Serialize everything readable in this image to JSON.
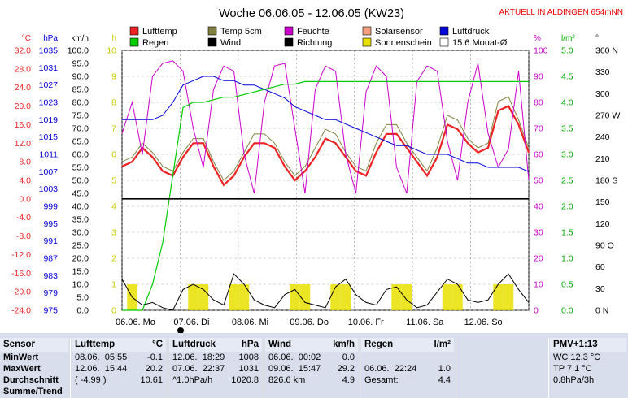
{
  "header": {
    "title": "Woche 06.06.05 - 12.06.05 (KW23)",
    "location_badge": "AKTUELL IN ALDINGEN 654mNN"
  },
  "legend": {
    "row1": [
      {
        "label": "Lufttemp",
        "color": "#ee2222"
      },
      {
        "label": "Temp 5cm",
        "color": "#808040"
      },
      {
        "label": "Feuchte",
        "color": "#cc00cc"
      },
      {
        "label": "Solarsensor",
        "color": "#f4a080"
      },
      {
        "label": "Luftdruck",
        "color": "#0000dd"
      }
    ],
    "row2": [
      {
        "label": "Regen",
        "color": "#00cc00"
      },
      {
        "label": "Wind",
        "color": "#000000"
      },
      {
        "label": "Richtung",
        "color": "#000000"
      },
      {
        "label": "Sonnenschein",
        "color": "#e8e000"
      },
      {
        "label": "15.6 Monat-Ø",
        "color": "#ffffff"
      }
    ]
  },
  "chart_data": {
    "type": "line",
    "title": "Woche 06.06.05 - 12.06.05 (KW23)",
    "x_labels": [
      "06.06. Mo",
      "07.06. Di",
      "08.06. Mi",
      "09.06. Do",
      "10.06. Fr",
      "11.06. Sa",
      "12.06. So"
    ],
    "axes": {
      "temp_c": {
        "unit": "°C",
        "color": "#ee2222",
        "ticks": [
          "32.0",
          "28.0",
          "24.0",
          "20.0",
          "16.0",
          "12.0",
          "8.0",
          "4.0",
          "0.0",
          "-4.0",
          "-8.0",
          "-12.0",
          "-16.0",
          "-20.0",
          "-24.0"
        ],
        "range": [
          -24,
          32
        ]
      },
      "pressure_hpa": {
        "unit": "hPa",
        "color": "#0000dd",
        "ticks": [
          "1035",
          "1031",
          "1027",
          "1023",
          "1019",
          "1015",
          "1011",
          "1007",
          "1003",
          "999",
          "995",
          "991",
          "987",
          "983",
          "979",
          "975"
        ],
        "range": [
          975,
          1035
        ]
      },
      "wind_kmh": {
        "unit": "km/h",
        "color": "#000000",
        "ticks": [
          "100.0",
          "95.0",
          "90.0",
          "85.0",
          "80.0",
          "75.0",
          "70.0",
          "65.0",
          "60.0",
          "55.0",
          "50.0",
          "45.0",
          "40.0",
          "35.0",
          "30.0",
          "25.0",
          "20.0",
          "15.0",
          "10.0",
          "5.0",
          "0.0"
        ],
        "range": [
          0,
          100
        ]
      },
      "sun_h": {
        "unit": "h",
        "color": "#c8c800",
        "ticks": [
          "10",
          "9",
          "8",
          "7",
          "6",
          "5",
          "4",
          "3",
          "2",
          "1",
          "0"
        ],
        "range": [
          0,
          10
        ]
      },
      "humidity_pct": {
        "unit": "%",
        "color": "#cc00cc",
        "ticks": [
          "100",
          "90",
          "80",
          "70",
          "60",
          "50",
          "40",
          "30",
          "20",
          "10",
          "0"
        ],
        "range": [
          0,
          100
        ]
      },
      "rain_lm2": {
        "unit": "l/m²",
        "color": "#00aa00",
        "ticks": [
          "5.0",
          "4.5",
          "4.0",
          "3.5",
          "3.0",
          "2.5",
          "2.0",
          "1.5",
          "1.0",
          "0.5",
          "0.0"
        ],
        "range": [
          0,
          5
        ]
      },
      "direction": {
        "unit": "°",
        "color": "#000000",
        "ticks": [
          "360 N",
          "330",
          "300",
          "270 W",
          "240",
          "210",
          "180 S",
          "150",
          "120",
          "90 O",
          "60",
          "30",
          "0 N"
        ],
        "range": [
          0,
          360
        ]
      }
    },
    "series": [
      {
        "name": "Lufttemp",
        "unit": "°C",
        "values": [
          7,
          8,
          11,
          9,
          6,
          5,
          9,
          12,
          12,
          7,
          3,
          5,
          9,
          12,
          12,
          11,
          7,
          4,
          6,
          9,
          13,
          12,
          9,
          6,
          5,
          10,
          14,
          14,
          11,
          8,
          5,
          9,
          16,
          15,
          12,
          10,
          11,
          19,
          20,
          16,
          10
        ]
      },
      {
        "name": "Temp 5cm",
        "unit": "°C",
        "values": [
          8,
          9,
          12,
          10,
          7,
          6,
          10,
          13,
          13,
          8,
          4,
          6,
          10,
          14,
          14,
          12,
          8,
          5,
          7,
          11,
          15,
          14,
          10,
          7,
          6,
          12,
          16,
          16,
          12,
          9,
          6,
          11,
          18,
          17,
          13,
          11,
          12,
          21,
          22,
          17,
          11
        ]
      },
      {
        "name": "Feuchte",
        "unit": "%",
        "values": [
          68,
          80,
          60,
          90,
          95,
          96,
          92,
          70,
          55,
          85,
          94,
          92,
          60,
          45,
          80,
          94,
          95,
          70,
          45,
          85,
          94,
          92,
          60,
          45,
          84,
          94,
          90,
          55,
          45,
          88,
          94,
          92,
          65,
          50,
          80,
          95,
          68,
          55,
          62,
          92,
          50
        ]
      },
      {
        "name": "Luftdruck",
        "unit": "hPa",
        "values": [
          1019,
          1019,
          1019,
          1019,
          1020,
          1023,
          1027,
          1028,
          1029,
          1029,
          1028,
          1028,
          1027,
          1027,
          1026,
          1025,
          1024,
          1022,
          1021,
          1020,
          1019,
          1019,
          1018,
          1017,
          1016,
          1015,
          1014,
          1013,
          1013,
          1012,
          1011,
          1011,
          1011,
          1010,
          1009,
          1009,
          1008,
          1008,
          1008,
          1008,
          1007
        ]
      },
      {
        "name": "Regen",
        "unit": "l/m²",
        "values": [
          0,
          0,
          0,
          0.5,
          1.3,
          2.6,
          3.9,
          4.0,
          4.0,
          4.05,
          4.1,
          4.1,
          4.15,
          4.2,
          4.25,
          4.3,
          4.35,
          4.35,
          4.4,
          4.4,
          4.4,
          4.4,
          4.4,
          4.4,
          4.4,
          4.4,
          4.4,
          4.4,
          4.4,
          4.4,
          4.4,
          4.4,
          4.4,
          4.4,
          4.4,
          4.4,
          4.4,
          4.4,
          4.4,
          4.4,
          4.4
        ]
      },
      {
        "name": "Wind",
        "unit": "km/h",
        "values": [
          12,
          5,
          2,
          3,
          1,
          0,
          8,
          10,
          8,
          4,
          2,
          14,
          10,
          4,
          2,
          1,
          6,
          8,
          3,
          2,
          1,
          9,
          12,
          6,
          3,
          2,
          8,
          9,
          4,
          1,
          2,
          7,
          12,
          10,
          4,
          3,
          4,
          10,
          14,
          8,
          3
        ]
      },
      {
        "name": "Sonnenschein",
        "unit": "h",
        "values": [
          0,
          1,
          0,
          0,
          0,
          0,
          0,
          1,
          1,
          0,
          0,
          1,
          1,
          0,
          0,
          0,
          0,
          1,
          1,
          0,
          0,
          1,
          1,
          0,
          0,
          0,
          0,
          1,
          1,
          0,
          0,
          0,
          1,
          1,
          0,
          0,
          0,
          1,
          1,
          0,
          0
        ]
      }
    ]
  },
  "stats": {
    "sensor": {
      "header": "Sensor",
      "rows": [
        "MinWert",
        "MaxWert",
        "Durchschnitt",
        "Summe/Trend"
      ]
    },
    "lufttemp": {
      "header": "Lufttemp",
      "unit": "°C",
      "rows": [
        [
          "08.06.",
          "05:55",
          "-0.1"
        ],
        [
          "12.06.",
          "15:44",
          "20.2"
        ],
        [
          "( -4.99 )",
          "",
          "10.61"
        ],
        [
          "",
          "",
          ""
        ]
      ]
    },
    "luftdruck": {
      "header": "Luftdruck",
      "unit": "hPa",
      "rows": [
        [
          "12.06.",
          "18:29",
          "1008"
        ],
        [
          "07.06.",
          "22:37",
          "1031"
        ],
        [
          "^1.0hPa/h",
          "",
          "1020.8"
        ],
        [
          "",
          "",
          ""
        ]
      ]
    },
    "wind": {
      "header": "Wind",
      "unit": "km/h",
      "rows": [
        [
          "06.06.",
          "00:02",
          "0.0"
        ],
        [
          "09.06.",
          "15:47",
          "29.2"
        ],
        [
          "826.6 km",
          "",
          "4.9"
        ],
        [
          "",
          "",
          ""
        ]
      ]
    },
    "regen": {
      "header": "Regen",
      "unit": "l/m²",
      "rows": [
        [
          "06.06.",
          "22:24",
          "1.0"
        ],
        [
          "Gesamt:",
          "",
          "4.4"
        ],
        [
          "",
          "",
          ""
        ],
        [
          "",
          "",
          ""
        ]
      ]
    },
    "pmv": {
      "header": "PMV+1:13",
      "rows": [
        "WC 12.3 °C",
        "TP 7.1 °C",
        "0.8hPa/3h",
        ""
      ]
    }
  }
}
